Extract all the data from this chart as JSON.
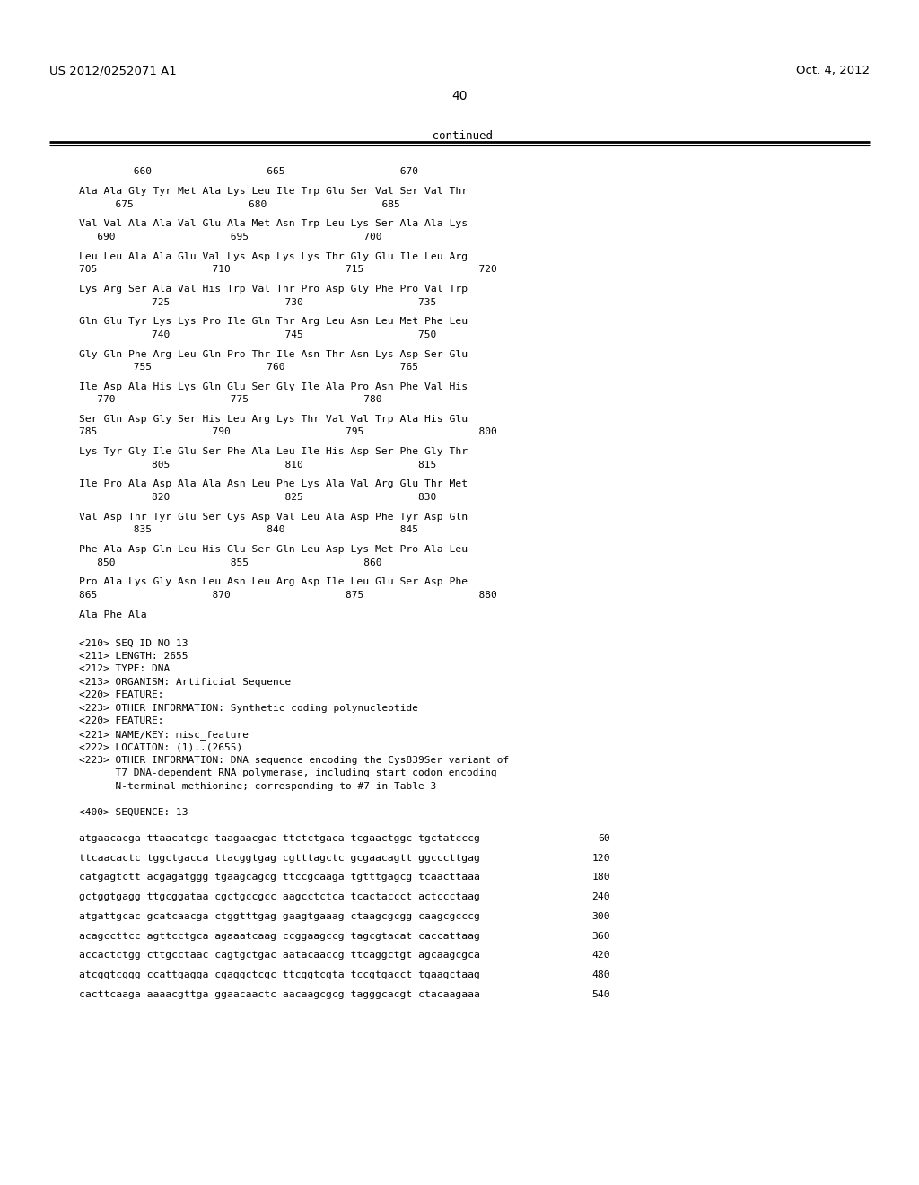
{
  "header_left": "US 2012/0252071 A1",
  "header_right": "Oct. 4, 2012",
  "page_number": "40",
  "continued_label": "-continued",
  "background_color": "#ffffff",
  "text_color": "#000000",
  "content_lines": [
    {
      "type": "gap",
      "size": 1.0
    },
    {
      "type": "numbering",
      "text": "         660                   665                   670"
    },
    {
      "type": "gap",
      "size": 0.5
    },
    {
      "type": "sequence",
      "text": "Ala Ala Gly Tyr Met Ala Lys Leu Ile Trp Glu Ser Val Ser Val Thr"
    },
    {
      "type": "numbering",
      "text": "      675                   680                   685"
    },
    {
      "type": "gap",
      "size": 0.5
    },
    {
      "type": "sequence",
      "text": "Val Val Ala Ala Val Glu Ala Met Asn Trp Leu Lys Ser Ala Ala Lys"
    },
    {
      "type": "numbering",
      "text": "   690                   695                   700"
    },
    {
      "type": "gap",
      "size": 0.5
    },
    {
      "type": "sequence",
      "text": "Leu Leu Ala Ala Glu Val Lys Asp Lys Lys Thr Gly Glu Ile Leu Arg"
    },
    {
      "type": "numbering",
      "text": "705                   710                   715                   720"
    },
    {
      "type": "gap",
      "size": 0.5
    },
    {
      "type": "sequence",
      "text": "Lys Arg Ser Ala Val His Trp Val Thr Pro Asp Gly Phe Pro Val Trp"
    },
    {
      "type": "numbering",
      "text": "            725                   730                   735"
    },
    {
      "type": "gap",
      "size": 0.5
    },
    {
      "type": "sequence",
      "text": "Gln Glu Tyr Lys Lys Pro Ile Gln Thr Arg Leu Asn Leu Met Phe Leu"
    },
    {
      "type": "numbering",
      "text": "            740                   745                   750"
    },
    {
      "type": "gap",
      "size": 0.5
    },
    {
      "type": "sequence",
      "text": "Gly Gln Phe Arg Leu Gln Pro Thr Ile Asn Thr Asn Lys Asp Ser Glu"
    },
    {
      "type": "numbering",
      "text": "         755                   760                   765"
    },
    {
      "type": "gap",
      "size": 0.5
    },
    {
      "type": "sequence",
      "text": "Ile Asp Ala His Lys Gln Glu Ser Gly Ile Ala Pro Asn Phe Val His"
    },
    {
      "type": "numbering",
      "text": "   770                   775                   780"
    },
    {
      "type": "gap",
      "size": 0.5
    },
    {
      "type": "sequence",
      "text": "Ser Gln Asp Gly Ser His Leu Arg Lys Thr Val Val Trp Ala His Glu"
    },
    {
      "type": "numbering",
      "text": "785                   790                   795                   800"
    },
    {
      "type": "gap",
      "size": 0.5
    },
    {
      "type": "sequence",
      "text": "Lys Tyr Gly Ile Glu Ser Phe Ala Leu Ile His Asp Ser Phe Gly Thr"
    },
    {
      "type": "numbering",
      "text": "            805                   810                   815"
    },
    {
      "type": "gap",
      "size": 0.5
    },
    {
      "type": "sequence",
      "text": "Ile Pro Ala Asp Ala Ala Asn Leu Phe Lys Ala Val Arg Glu Thr Met"
    },
    {
      "type": "numbering",
      "text": "            820                   825                   830"
    },
    {
      "type": "gap",
      "size": 0.5
    },
    {
      "type": "sequence",
      "text": "Val Asp Thr Tyr Glu Ser Cys Asp Val Leu Ala Asp Phe Tyr Asp Gln"
    },
    {
      "type": "numbering",
      "text": "         835                   840                   845"
    },
    {
      "type": "gap",
      "size": 0.5
    },
    {
      "type": "sequence",
      "text": "Phe Ala Asp Gln Leu His Glu Ser Gln Leu Asp Lys Met Pro Ala Leu"
    },
    {
      "type": "numbering",
      "text": "   850                   855                   860"
    },
    {
      "type": "gap",
      "size": 0.5
    },
    {
      "type": "sequence",
      "text": "Pro Ala Lys Gly Asn Leu Asn Leu Arg Asp Ile Leu Glu Ser Asp Phe"
    },
    {
      "type": "numbering",
      "text": "865                   870                   875                   880"
    },
    {
      "type": "gap",
      "size": 0.5
    },
    {
      "type": "sequence",
      "text": "Ala Phe Ala"
    },
    {
      "type": "gap",
      "size": 1.2
    },
    {
      "type": "metadata",
      "text": "<210> SEQ ID NO 13"
    },
    {
      "type": "metadata",
      "text": "<211> LENGTH: 2655"
    },
    {
      "type": "metadata",
      "text": "<212> TYPE: DNA"
    },
    {
      "type": "metadata",
      "text": "<213> ORGANISM: Artificial Sequence"
    },
    {
      "type": "metadata",
      "text": "<220> FEATURE:"
    },
    {
      "type": "metadata",
      "text": "<223> OTHER INFORMATION: Synthetic coding polynucleotide"
    },
    {
      "type": "metadata",
      "text": "<220> FEATURE:"
    },
    {
      "type": "metadata",
      "text": "<221> NAME/KEY: misc_feature"
    },
    {
      "type": "metadata",
      "text": "<222> LOCATION: (1)..(2655)"
    },
    {
      "type": "metadata",
      "text": "<223> OTHER INFORMATION: DNA sequence encoding the Cys839Ser variant of"
    },
    {
      "type": "metadata",
      "text": "      T7 DNA-dependent RNA polymerase, including start codon encoding"
    },
    {
      "type": "metadata",
      "text": "      N-terminal methionine; corresponding to #7 in Table 3"
    },
    {
      "type": "gap",
      "size": 1.0
    },
    {
      "type": "metadata",
      "text": "<400> SEQUENCE: 13"
    },
    {
      "type": "gap",
      "size": 1.0
    },
    {
      "type": "dna",
      "text": "atgaacacga ttaacatcgc taagaacgac ttctctgaca tcgaactggc tgctatcccg",
      "num": "60"
    },
    {
      "type": "gap",
      "size": 0.5
    },
    {
      "type": "dna",
      "text": "ttcaacactc tggctgacca ttacggtgag cgtttagctc gcgaacagtt ggcccttgag",
      "num": "120"
    },
    {
      "type": "gap",
      "size": 0.5
    },
    {
      "type": "dna",
      "text": "catgagtctt acgagatggg tgaagcagcg ttccgcaaga tgtttgagcg tcaacttaaa",
      "num": "180"
    },
    {
      "type": "gap",
      "size": 0.5
    },
    {
      "type": "dna",
      "text": "gctggtgagg ttgcggataa cgctgccgcc aagcctctca tcactaccct actccctaag",
      "num": "240"
    },
    {
      "type": "gap",
      "size": 0.5
    },
    {
      "type": "dna",
      "text": "atgattgcac gcatcaacga ctggtttgag gaagtgaaag ctaagcgcgg caagcgcccg",
      "num": "300"
    },
    {
      "type": "gap",
      "size": 0.5
    },
    {
      "type": "dna",
      "text": "acagccttcc agttcctgca agaaatcaag ccggaagccg tagcgtacat caccattaag",
      "num": "360"
    },
    {
      "type": "gap",
      "size": 0.5
    },
    {
      "type": "dna",
      "text": "accactctgg cttgcctaac cagtgctgac aatacaaccg ttcaggctgt agcaagcgca",
      "num": "420"
    },
    {
      "type": "gap",
      "size": 0.5
    },
    {
      "type": "dna",
      "text": "atcggtcggg ccattgagga cgaggctcgc ttcggtcgta tccgtgacct tgaagctaag",
      "num": "480"
    },
    {
      "type": "gap",
      "size": 0.5
    },
    {
      "type": "dna",
      "text": "cacttcaaga aaaacgttga ggaacaactc aacaagcgcg tagggcacgt ctacaagaaa",
      "num": "540"
    }
  ]
}
